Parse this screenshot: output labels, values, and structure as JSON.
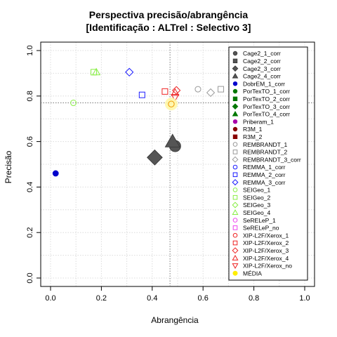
{
  "chart_data": {
    "type": "scatter",
    "title": "Perspectiva precisão/abrangência",
    "subtitle": "[Identificação : ALTrel : Selectivo 3]",
    "xlabel": "Abrangência",
    "ylabel": "Precisão",
    "xlim": [
      0,
      1
    ],
    "ylim": [
      0,
      1
    ],
    "xticks": [
      "0.0",
      "0.2",
      "0.4",
      "0.6",
      "0.8",
      "1.0"
    ],
    "yticks": [
      "0.0",
      "0.2",
      "0.4",
      "0.6",
      "0.8",
      "1.0"
    ],
    "grid": true,
    "legend_position": "right",
    "reference_lines": {
      "x": 0.47,
      "y": 0.77
    },
    "series": [
      {
        "name": "Cage2_1_corr",
        "shape": "circle-solid",
        "color": "#555555",
        "x": 0.49,
        "y": 0.58,
        "size": "large"
      },
      {
        "name": "Cage2_2_corr",
        "shape": "square-solid",
        "color": "#555555",
        "x": null,
        "y": null
      },
      {
        "name": "Cage2_3_corr",
        "shape": "diamond-solid",
        "color": "#555555",
        "x": 0.41,
        "y": 0.53,
        "size": "large"
      },
      {
        "name": "Cage2_4_corr",
        "shape": "triangle-solid",
        "color": "#555555",
        "x": 0.48,
        "y": 0.6,
        "size": "large"
      },
      {
        "name": "DobrEM_1_corr",
        "shape": "circle-solid",
        "color": "#0000cc",
        "x": 0.02,
        "y": 0.46
      },
      {
        "name": "PorTexTO_1_corr",
        "shape": "circle-solid",
        "color": "#007700",
        "x": null,
        "y": null
      },
      {
        "name": "PorTexTO_2_corr",
        "shape": "square-solid",
        "color": "#007700",
        "x": null,
        "y": null
      },
      {
        "name": "PorTexTO_3_corr",
        "shape": "diamond-solid",
        "color": "#007700",
        "x": null,
        "y": null
      },
      {
        "name": "PorTexTO_4_corr",
        "shape": "triangle-solid",
        "color": "#007700",
        "x": null,
        "y": null
      },
      {
        "name": "Priberam_1",
        "shape": "circle-solid",
        "color": "#aa00aa",
        "x": null,
        "y": null
      },
      {
        "name": "R3M_1",
        "shape": "circle-solid",
        "color": "#880000",
        "x": null,
        "y": null
      },
      {
        "name": "R3M_2",
        "shape": "square-solid",
        "color": "#880000",
        "x": null,
        "y": null
      },
      {
        "name": "REMBRANDT_1",
        "shape": "circle-open",
        "color": "#999999",
        "x": 0.58,
        "y": 0.83
      },
      {
        "name": "REMBRANDT_2",
        "shape": "square-open",
        "color": "#999999",
        "x": 0.67,
        "y": 0.83
      },
      {
        "name": "REMBRANDT_3_corr",
        "shape": "diamond-open",
        "color": "#999999",
        "x": 0.63,
        "y": 0.815
      },
      {
        "name": "REMMA_1_corr",
        "shape": "circle-open",
        "color": "#1a1aff",
        "x": null,
        "y": null
      },
      {
        "name": "REMMA_2_corr",
        "shape": "square-open",
        "color": "#1a1aff",
        "x": 0.36,
        "y": 0.805
      },
      {
        "name": "REMMA_3_corr",
        "shape": "diamond-open",
        "color": "#1a1aff",
        "x": 0.31,
        "y": 0.905
      },
      {
        "name": "SEIGeo_1",
        "shape": "circle-open",
        "color": "#88ee44",
        "x": 0.09,
        "y": 0.77
      },
      {
        "name": "SEIGeo_2",
        "shape": "square-open",
        "color": "#88ee44",
        "x": 0.17,
        "y": 0.905
      },
      {
        "name": "SEIGeo_3",
        "shape": "diamond-open",
        "color": "#88ee44",
        "x": null,
        "y": null
      },
      {
        "name": "SEIGeo_4",
        "shape": "triangle-open",
        "color": "#88ee44",
        "x": 0.18,
        "y": 0.905
      },
      {
        "name": "SeRELeP_1",
        "shape": "circle-open",
        "color": "#ee44ee",
        "x": null,
        "y": null
      },
      {
        "name": "SeRELeP_no",
        "shape": "square-open",
        "color": "#ee44ee",
        "x": null,
        "y": null
      },
      {
        "name": "XIP-L2F/Xerox_1",
        "shape": "circle-open",
        "color": "#ee2222",
        "x": null,
        "y": null
      },
      {
        "name": "XIP-L2F/Xerox_2",
        "shape": "square-open",
        "color": "#ee2222",
        "x": 0.45,
        "y": 0.82
      },
      {
        "name": "XIP-L2F/Xerox_3",
        "shape": "diamond-open",
        "color": "#ee2222",
        "x": 0.495,
        "y": 0.825
      },
      {
        "name": "XIP-L2F/Xerox_4",
        "shape": "triangle-open",
        "color": "#ee2222",
        "x": 0.49,
        "y": 0.815
      },
      {
        "name": "XIP-L2F/Xerox_no",
        "shape": "triangle-down-open",
        "color": "#ee2222",
        "x": 0.49,
        "y": 0.795
      },
      {
        "name": "MÉDIA",
        "shape": "circle-open",
        "color": "#ffee00",
        "x": 0.475,
        "y": 0.765,
        "highlight": true
      }
    ]
  }
}
